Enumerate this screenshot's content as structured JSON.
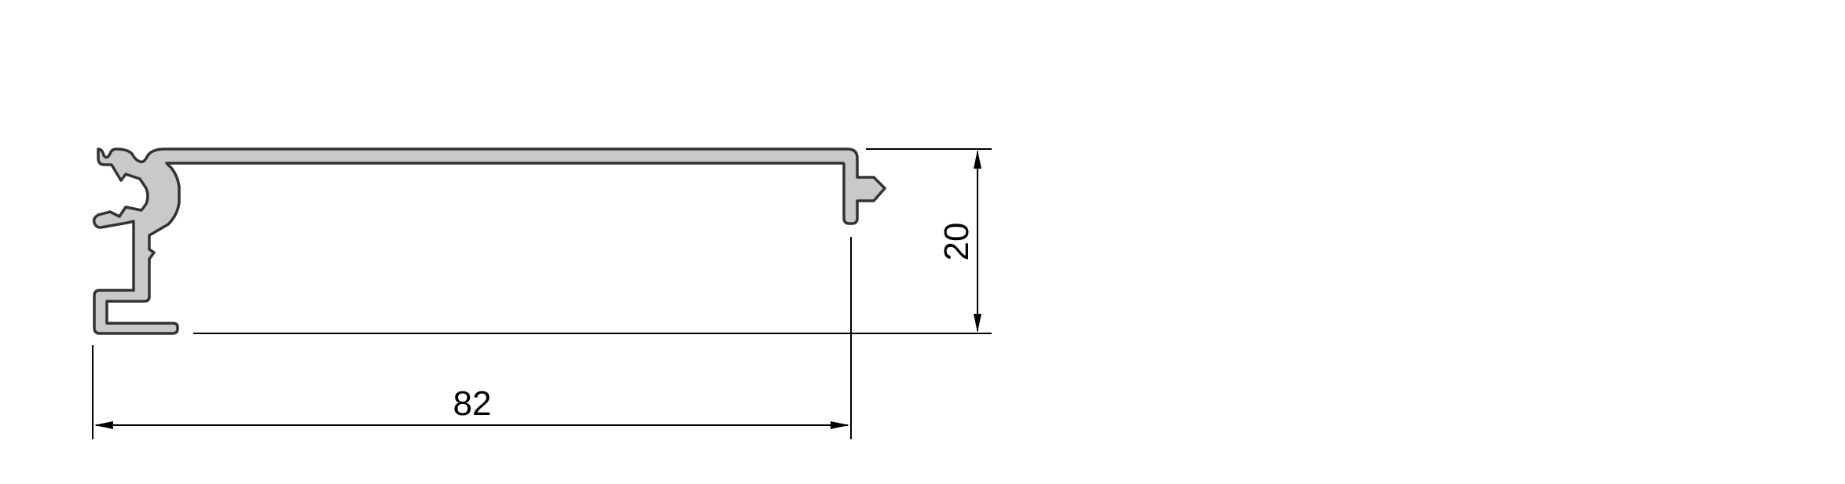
{
  "dimensions": {
    "width_label": "82",
    "height_label": "20"
  },
  "colors": {
    "profile_fill": "#c9c9c9",
    "profile_stroke": "#333333",
    "dimension_line": "#000000",
    "background": "#ffffff"
  }
}
